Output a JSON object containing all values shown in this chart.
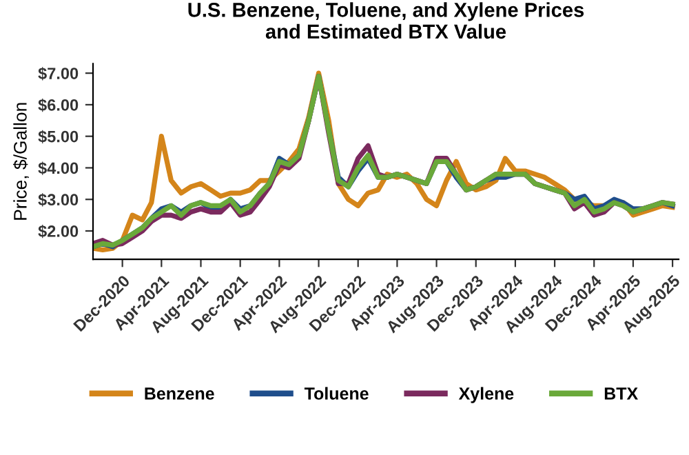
{
  "chart_data": {
    "type": "line",
    "title": "U.S. Benzene, Toluene, and Xylene Prices\nand Estimated BTX Value",
    "ylabel": "Price, $/Gallon",
    "x": [
      "2020-09",
      "2020-10",
      "2020-11",
      "2020-12",
      "2021-01",
      "2021-02",
      "2021-03",
      "2021-04",
      "2021-05",
      "2021-06",
      "2021-07",
      "2021-08",
      "2021-09",
      "2021-10",
      "2021-11",
      "2021-12",
      "2022-01",
      "2022-02",
      "2022-03",
      "2022-04",
      "2022-05",
      "2022-06",
      "2022-07",
      "2022-08",
      "2022-09",
      "2022-10",
      "2022-11",
      "2022-12",
      "2023-01",
      "2023-02",
      "2023-03",
      "2023-04",
      "2023-05",
      "2023-06",
      "2023-07",
      "2023-08",
      "2023-09",
      "2023-10",
      "2023-11",
      "2023-12",
      "2024-01",
      "2024-02",
      "2024-03",
      "2024-04",
      "2024-05",
      "2024-06",
      "2024-07",
      "2024-08",
      "2024-09",
      "2024-10",
      "2024-11",
      "2024-12",
      "2025-01",
      "2025-02",
      "2025-03",
      "2025-04",
      "2025-05",
      "2025-06",
      "2025-07",
      "2025-08"
    ],
    "series": [
      {
        "name": "Benzene",
        "color": "#d4851a",
        "values": [
          1.45,
          1.4,
          1.45,
          1.7,
          2.5,
          2.35,
          2.9,
          5.0,
          3.6,
          3.2,
          3.4,
          3.5,
          3.3,
          3.1,
          3.2,
          3.2,
          3.3,
          3.6,
          3.6,
          3.9,
          4.2,
          4.6,
          5.6,
          7.0,
          5.5,
          3.5,
          3.0,
          2.8,
          3.2,
          3.3,
          3.8,
          3.7,
          3.8,
          3.5,
          3.0,
          2.8,
          3.6,
          4.2,
          3.5,
          3.3,
          3.4,
          3.6,
          4.3,
          3.9,
          3.9,
          3.8,
          3.7,
          3.5,
          3.3,
          3.0,
          2.9,
          2.8,
          2.8,
          2.9,
          2.9,
          2.5,
          2.6,
          2.7,
          2.8,
          2.75
        ]
      },
      {
        "name": "Toluene",
        "color": "#1f4e8c",
        "values": [
          1.5,
          1.6,
          1.5,
          1.7,
          1.9,
          2.1,
          2.4,
          2.7,
          2.8,
          2.6,
          2.8,
          2.9,
          2.7,
          2.7,
          3.0,
          2.7,
          2.8,
          3.2,
          3.5,
          4.3,
          4.1,
          4.4,
          5.5,
          6.9,
          5.2,
          3.7,
          3.4,
          3.9,
          4.3,
          3.7,
          3.7,
          3.8,
          3.7,
          3.6,
          3.5,
          4.2,
          4.2,
          3.7,
          3.3,
          3.4,
          3.6,
          3.7,
          3.7,
          3.8,
          3.8,
          3.5,
          3.4,
          3.3,
          3.2,
          3.0,
          3.1,
          2.7,
          2.8,
          3.0,
          2.9,
          2.7,
          2.7,
          2.8,
          2.9,
          2.8
        ]
      },
      {
        "name": "Xylene",
        "color": "#7b2a5e",
        "values": [
          1.6,
          1.7,
          1.55,
          1.6,
          1.8,
          2.0,
          2.3,
          2.5,
          2.5,
          2.4,
          2.6,
          2.7,
          2.6,
          2.6,
          2.9,
          2.5,
          2.6,
          3.0,
          3.4,
          4.1,
          4.0,
          4.3,
          5.5,
          6.9,
          5.1,
          3.5,
          3.5,
          4.3,
          4.7,
          3.8,
          3.7,
          3.8,
          3.7,
          3.6,
          3.5,
          4.3,
          4.3,
          3.8,
          3.3,
          3.4,
          3.6,
          3.8,
          3.8,
          3.8,
          3.8,
          3.5,
          3.4,
          3.3,
          3.2,
          2.7,
          2.9,
          2.5,
          2.6,
          2.9,
          2.8,
          2.6,
          2.7,
          2.8,
          2.9,
          2.85
        ]
      },
      {
        "name": "BTX",
        "color": "#6aa93a",
        "values": [
          1.5,
          1.6,
          1.55,
          1.7,
          1.9,
          2.1,
          2.4,
          2.6,
          2.8,
          2.5,
          2.8,
          2.9,
          2.8,
          2.8,
          3.0,
          2.6,
          2.8,
          3.2,
          3.5,
          4.2,
          4.1,
          4.4,
          5.5,
          6.9,
          5.2,
          3.6,
          3.4,
          4.0,
          4.4,
          3.7,
          3.7,
          3.8,
          3.7,
          3.6,
          3.5,
          4.2,
          4.2,
          3.8,
          3.3,
          3.4,
          3.6,
          3.8,
          3.8,
          3.8,
          3.8,
          3.5,
          3.4,
          3.3,
          3.2,
          2.8,
          3.0,
          2.6,
          2.7,
          2.9,
          2.8,
          2.6,
          2.7,
          2.8,
          2.9,
          2.85
        ]
      }
    ],
    "xlim": [
      "2020-09",
      "2025-08-20"
    ],
    "xticks": [
      {
        "value": "2020-12",
        "label": "Dec-2020"
      },
      {
        "value": "2021-04",
        "label": "Apr-2021"
      },
      {
        "value": "2021-08",
        "label": "Aug-2021"
      },
      {
        "value": "2021-12",
        "label": "Dec-2021"
      },
      {
        "value": "2022-04",
        "label": "Apr-2022"
      },
      {
        "value": "2022-08",
        "label": "Aug-2022"
      },
      {
        "value": "2022-12",
        "label": "Dec-2022"
      },
      {
        "value": "2023-04",
        "label": "Apr-2023"
      },
      {
        "value": "2023-08",
        "label": "Aug-2023"
      },
      {
        "value": "2023-12",
        "label": "Dec-2023"
      },
      {
        "value": "2024-04",
        "label": "Apr-2024"
      },
      {
        "value": "2024-08",
        "label": "Aug-2024"
      },
      {
        "value": "2024-12",
        "label": "Dec-2024"
      },
      {
        "value": "2025-04",
        "label": "Apr-2025"
      },
      {
        "value": "2025-08",
        "label": "Aug-2025"
      }
    ],
    "ylim": [
      1.1,
      7.3
    ],
    "yticks": [
      {
        "value": 2,
        "label": "$2.00"
      },
      {
        "value": 3,
        "label": "$3.00"
      },
      {
        "value": 4,
        "label": "$4.00"
      },
      {
        "value": 5,
        "label": "$5.00"
      },
      {
        "value": 6,
        "label": "$6.00"
      },
      {
        "value": 7,
        "label": "$7.00"
      }
    ],
    "grid": false,
    "legend": "bottom",
    "marker": "none",
    "line_style": "solid"
  }
}
